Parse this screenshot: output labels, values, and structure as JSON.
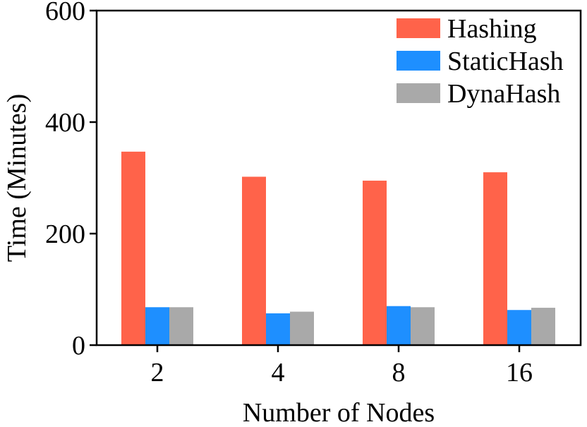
{
  "chart_data": {
    "type": "bar",
    "title": "",
    "xlabel": "Number of Nodes",
    "ylabel": "Time (Minutes)",
    "categories": [
      "2",
      "4",
      "8",
      "16"
    ],
    "ylim": [
      0,
      600
    ],
    "yticks": [
      0,
      200,
      400,
      600
    ],
    "grid": false,
    "legend_position": "top-right",
    "series": [
      {
        "name": "Hashing",
        "color": "#ff634a",
        "values": [
          347,
          302,
          295,
          310
        ]
      },
      {
        "name": "StaticHash",
        "color": "#1e8fff",
        "values": [
          68,
          57,
          70,
          63
        ]
      },
      {
        "name": "DynaHash",
        "color": "#a9a9a9",
        "values": [
          68,
          60,
          68,
          67
        ]
      }
    ]
  }
}
